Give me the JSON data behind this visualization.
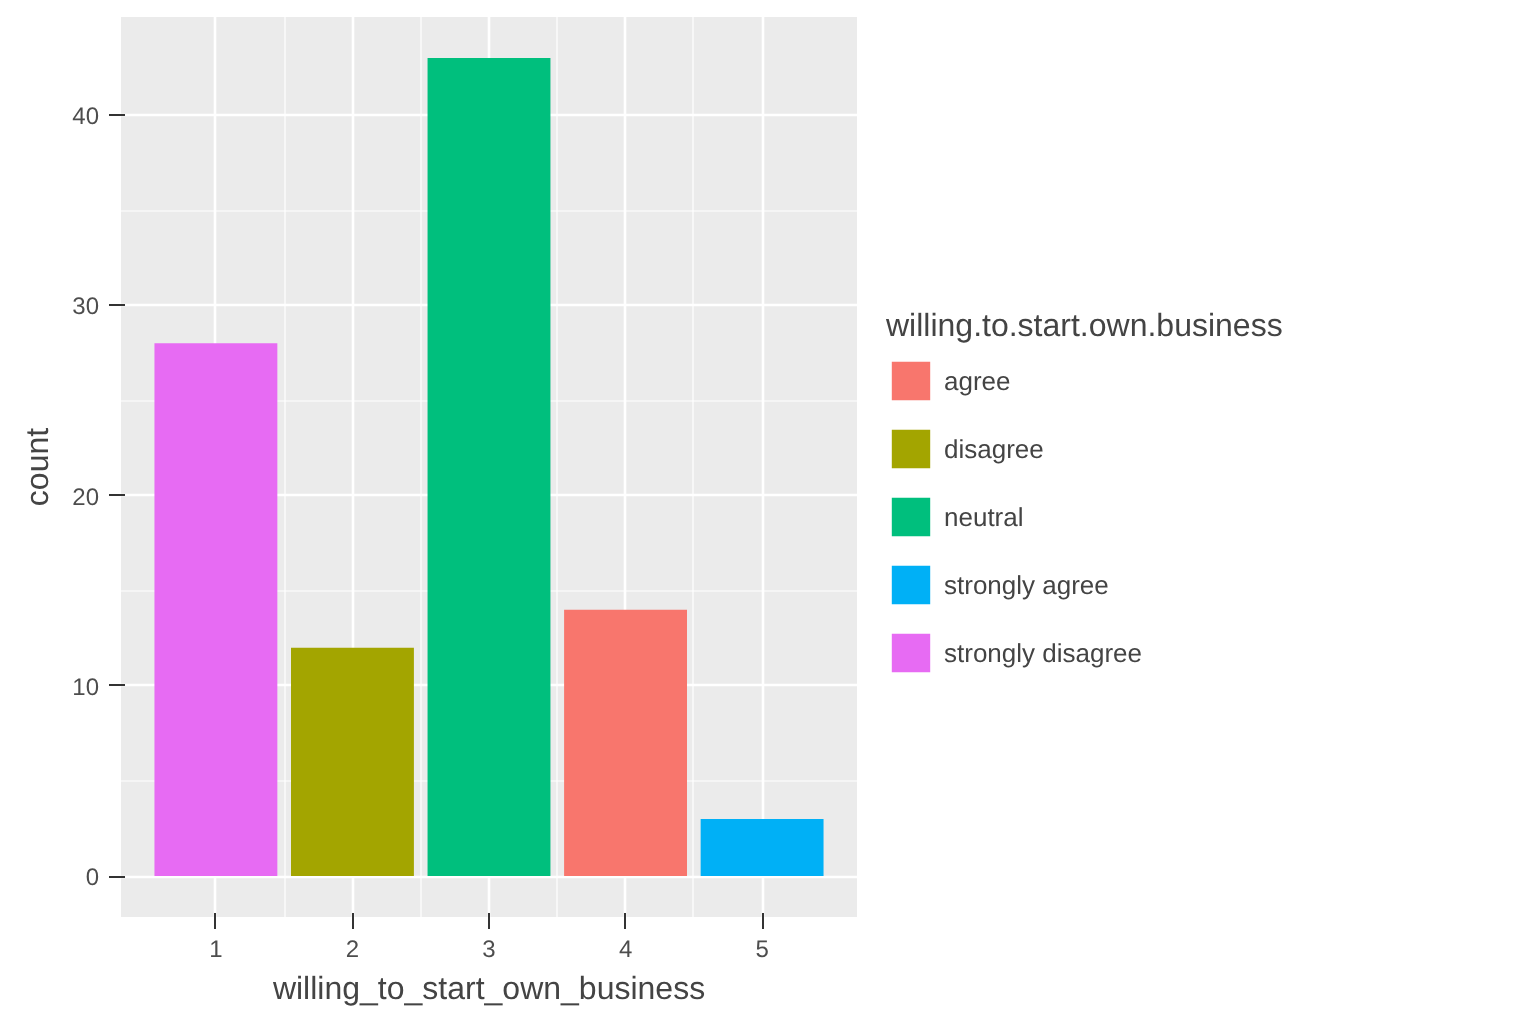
{
  "chart_data": {
    "type": "bar",
    "xlabel": "willing_to_start_own_business",
    "ylabel": "count",
    "legend_title": "willing.to.start.own.business",
    "x": [
      1,
      2,
      3,
      4,
      5
    ],
    "series": [
      {
        "name": "agree",
        "color": "#f8766d",
        "values": [
          null,
          null,
          null,
          14,
          null
        ]
      },
      {
        "name": "disagree",
        "color": "#a3a500",
        "values": [
          null,
          12,
          null,
          null,
          null
        ]
      },
      {
        "name": "neutral",
        "color": "#00bf7d",
        "values": [
          null,
          null,
          43,
          null,
          null
        ]
      },
      {
        "name": "strongly agree",
        "color": "#00b0f6",
        "values": [
          null,
          null,
          null,
          null,
          3
        ]
      },
      {
        "name": "strongly disagree",
        "color": "#e76bf3",
        "values": [
          28,
          null,
          null,
          null,
          null
        ]
      }
    ],
    "xlim": [
      0.305,
      5.695
    ],
    "ylim": [
      -2.15,
      45.15
    ],
    "xticks": [
      1,
      2,
      3,
      4,
      5
    ],
    "yticks": [
      0,
      10,
      20,
      30,
      40
    ],
    "grid": true,
    "legend": "right"
  }
}
